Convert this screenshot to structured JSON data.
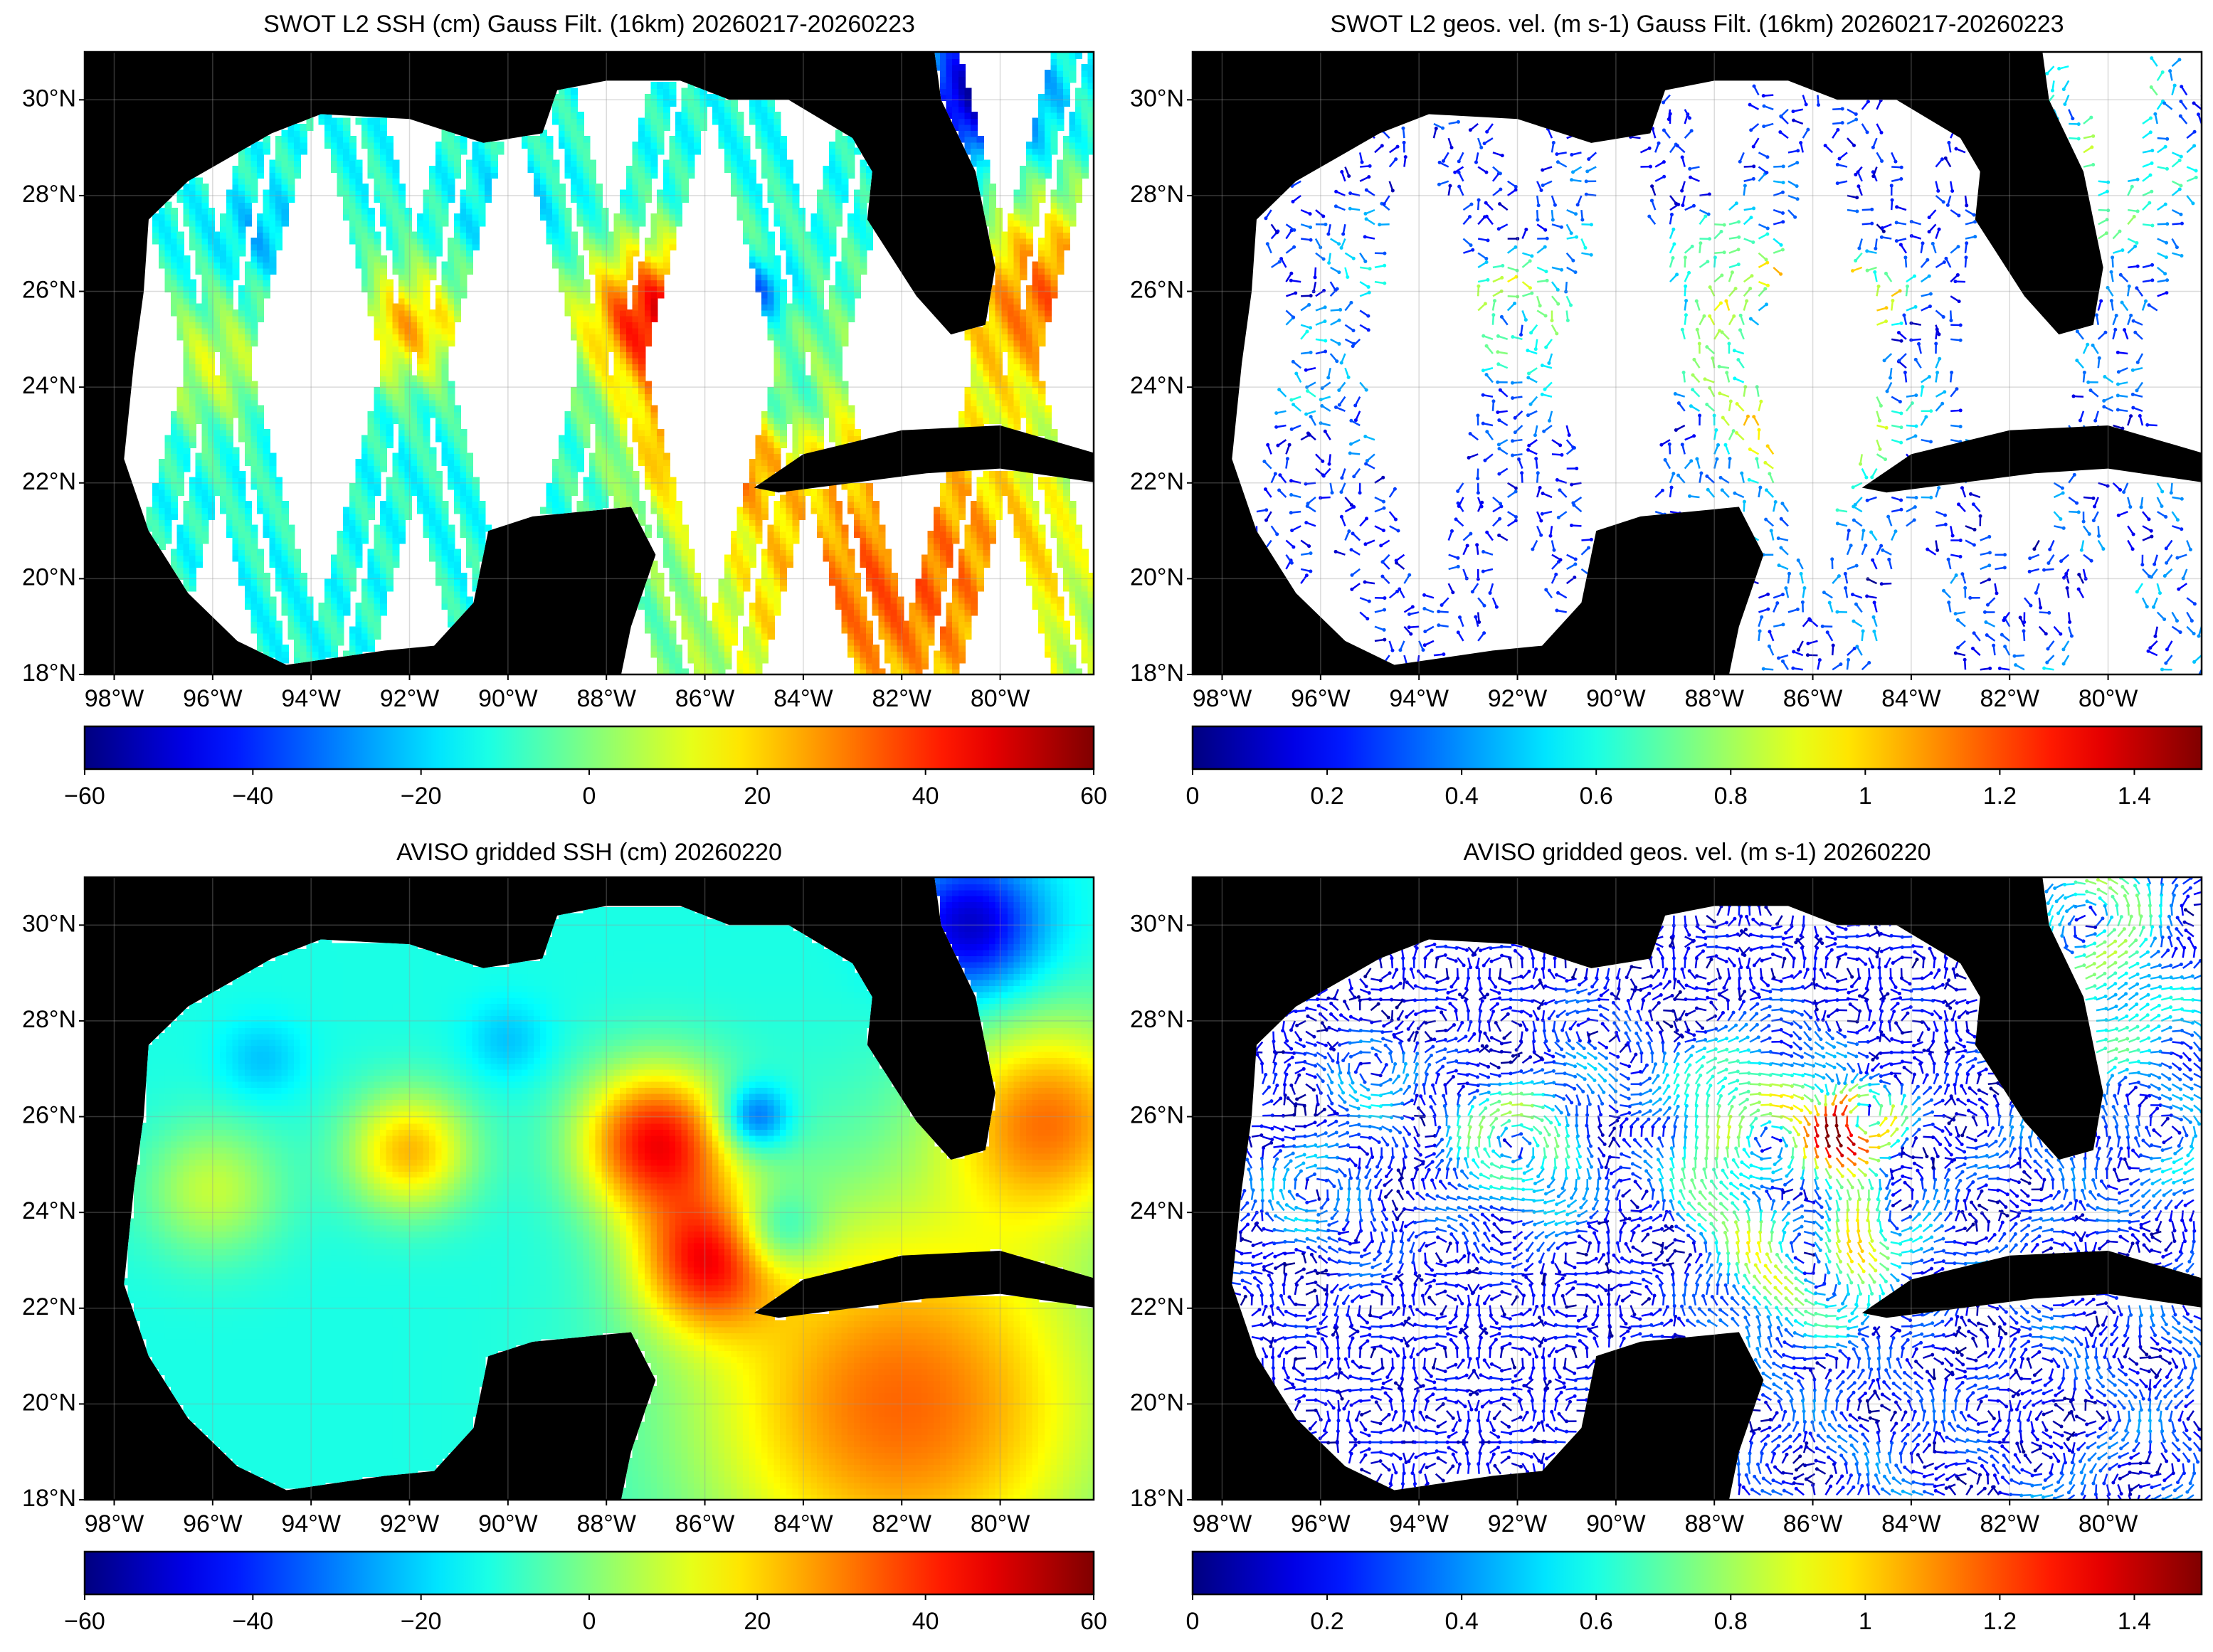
{
  "map": {
    "lonlim": [
      -98.6,
      -78.1
    ],
    "latlim": [
      18,
      31
    ]
  },
  "xticks": [
    {
      "value": -98,
      "label": "98°W"
    },
    {
      "value": -96,
      "label": "96°W"
    },
    {
      "value": -94,
      "label": "94°W"
    },
    {
      "value": -92,
      "label": "92°W"
    },
    {
      "value": -90,
      "label": "90°W"
    },
    {
      "value": -88,
      "label": "88°W"
    },
    {
      "value": -86,
      "label": "86°W"
    },
    {
      "value": -84,
      "label": "84°W"
    },
    {
      "value": -82,
      "label": "82°W"
    },
    {
      "value": -80,
      "label": "80°W"
    }
  ],
  "yticks": [
    {
      "value": 18,
      "label": "18°N"
    },
    {
      "value": 20,
      "label": "20°N"
    },
    {
      "value": 22,
      "label": "22°N"
    },
    {
      "value": 24,
      "label": "24°N"
    },
    {
      "value": 26,
      "label": "26°N"
    },
    {
      "value": 28,
      "label": "28°N"
    },
    {
      "value": 30,
      "label": "30°N"
    }
  ],
  "panels": [
    {
      "type": "ssh-swath",
      "title": "SWOT L2 SSH (cm) Gauss Filt. (16km) 20260217-20260223",
      "colorbar": {
        "range": [
          -60,
          60
        ],
        "ticks": [
          {
            "value": -60,
            "label": "−60"
          },
          {
            "value": -40,
            "label": "−40"
          },
          {
            "value": -20,
            "label": "−20"
          },
          0,
          20,
          40,
          60
        ]
      }
    },
    {
      "type": "vel-swath",
      "title": "SWOT L2 geos. vel. (m s-1) Gauss Filt. (16km) 20260217-20260223",
      "colorbar": {
        "range": [
          0,
          1.5
        ],
        "ticks": [
          0,
          0.2,
          0.4,
          0.6,
          0.8,
          1,
          1.2,
          1.4
        ]
      }
    },
    {
      "type": "ssh-grid",
      "title": "AVISO gridded SSH (cm) 20260220",
      "colorbar": {
        "range": [
          -60,
          60
        ],
        "ticks": [
          {
            "value": -60,
            "label": "−60"
          },
          {
            "value": -40,
            "label": "−40"
          },
          {
            "value": -20,
            "label": "−20"
          },
          0,
          20,
          40,
          60
        ]
      }
    },
    {
      "type": "vel-grid",
      "title": "AVISO gridded geos. vel. (m s-1)  20260220",
      "colorbar": {
        "range": [
          0,
          1.5
        ],
        "ticks": [
          0,
          0.2,
          0.4,
          0.6,
          0.8,
          1,
          1.2,
          1.4
        ]
      }
    }
  ]
}
